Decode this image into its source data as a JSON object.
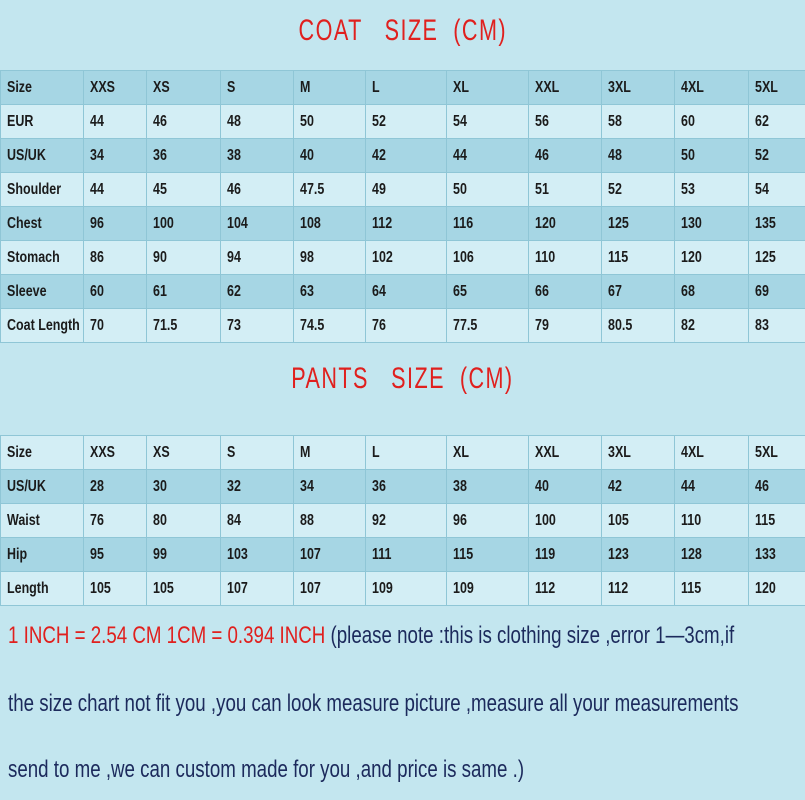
{
  "coat": {
    "title": "COAT   SIZE  (CM)",
    "rows": [
      [
        "Size",
        "XXS",
        "XS",
        "S",
        "M",
        "L",
        "XL",
        "XXL",
        "3XL",
        "4XL",
        "5XL"
      ],
      [
        "EUR",
        "44",
        "46",
        "48",
        "50",
        "52",
        "54",
        "56",
        "58",
        "60",
        "62"
      ],
      [
        "US/UK",
        "34",
        "36",
        "38",
        "40",
        "42",
        "44",
        "46",
        "48",
        "50",
        "52"
      ],
      [
        "Shoulder",
        "44",
        "45",
        "46",
        "47.5",
        "49",
        "50",
        "51",
        "52",
        "53",
        "54"
      ],
      [
        "Chest",
        "96",
        "100",
        "104",
        "108",
        "112",
        "116",
        "120",
        "125",
        "130",
        "135"
      ],
      [
        "Stomach",
        "86",
        "90",
        "94",
        "98",
        "102",
        "106",
        "110",
        "115",
        "120",
        "125"
      ],
      [
        "Sleeve",
        "60",
        "61",
        "62",
        "63",
        "64",
        "65",
        "66",
        "67",
        "68",
        "69"
      ],
      [
        "Coat Length",
        "70",
        "71.5",
        "73",
        "74.5",
        "76",
        "77.5",
        "79",
        "80.5",
        "82",
        "83"
      ]
    ]
  },
  "pants": {
    "title": "PANTS   SIZE  (CM)",
    "rows": [
      [
        "Size",
        "XXS",
        "XS",
        "S",
        "M",
        "L",
        "XL",
        "XXL",
        "3XL",
        "4XL",
        "5XL"
      ],
      [
        "US/UK",
        "28",
        "30",
        "32",
        "34",
        "36",
        "38",
        "40",
        "42",
        "44",
        "46"
      ],
      [
        "Waist",
        "76",
        "80",
        "84",
        "88",
        "92",
        "96",
        "100",
        "105",
        "110",
        "115"
      ],
      [
        "Hip",
        "95",
        "99",
        "103",
        "107",
        "111",
        "115",
        "119",
        "123",
        "128",
        "133"
      ],
      [
        "Length",
        "105",
        "105",
        "107",
        "107",
        "109",
        "109",
        "112",
        "112",
        "115",
        "120"
      ]
    ]
  },
  "notes": {
    "conversion": "1 INCH = 2.54 CM   1CM = 0.394 INCH",
    "line1": "  (please note :this is clothing size ,error 1—3cm,if",
    "line2": "the size chart not fit you ,you can look measure picture ,measure all your measurements",
    "line3": "send to me ,we can custom made for you ,and price is same .)"
  },
  "colors": {
    "title": "#e0201e",
    "note_text": "#1c2a5c",
    "row_dark": "#a6d6e4",
    "row_light": "#d3eef5"
  }
}
